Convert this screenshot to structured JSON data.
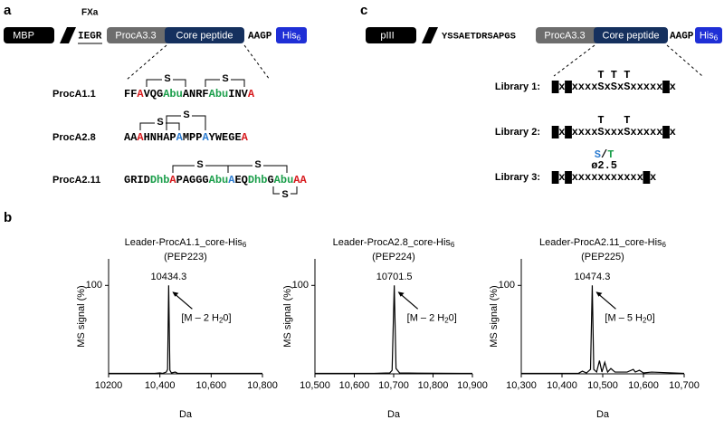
{
  "panel_a": {
    "label": "a",
    "construct": {
      "mbp": "MBP",
      "fxa": "FXa",
      "site": "IEGR",
      "leader": "ProcA3.3",
      "core": "Core peptide",
      "linker": "AAGP",
      "tag": "His",
      "tag_sub": "6"
    },
    "bridge_label": "S",
    "peptides": [
      {
        "name": "ProcA1.1",
        "sequence": [
          {
            "text": "FF"
          },
          {
            "text": "A",
            "color": "#d7191c"
          },
          {
            "text": "VQG"
          },
          {
            "text": "Abu",
            "color": "#1a9e4a"
          },
          {
            "text": "ANRF"
          },
          {
            "text": "Abu",
            "color": "#1a9e4a"
          },
          {
            "text": "INV"
          },
          {
            "text": "A",
            "color": "#d7191c"
          }
        ]
      },
      {
        "name": "ProcA2.8",
        "sequence": [
          {
            "text": "AA"
          },
          {
            "text": "A",
            "color": "#d7191c"
          },
          {
            "text": "HNHAP"
          },
          {
            "text": "A",
            "color": "#2b7bd0"
          },
          {
            "text": "MPP"
          },
          {
            "text": "A",
            "color": "#2b7bd0"
          },
          {
            "text": "YWEGE"
          },
          {
            "text": "A",
            "color": "#d7191c"
          }
        ]
      },
      {
        "name": "ProcA2.11",
        "sequence": [
          {
            "text": "GRID"
          },
          {
            "text": "Dhb",
            "color": "#1a9e4a"
          },
          {
            "text": "A",
            "color": "#d7191c"
          },
          {
            "text": "PAGGG"
          },
          {
            "text": "Abu",
            "color": "#1a9e4a"
          },
          {
            "text": "A",
            "color": "#2b7bd0"
          },
          {
            "text": "EQ"
          },
          {
            "text": "Dhb",
            "color": "#1a9e4a"
          },
          {
            "text": "G"
          },
          {
            "text": "Abu",
            "color": "#1a9e4a"
          },
          {
            "text": "AA",
            "color": "#d7191c"
          }
        ]
      }
    ]
  },
  "panel_c": {
    "label": "c",
    "construct": {
      "p3": "pIII",
      "linker1": "YSSAETDRSAPGS",
      "leader": "ProcA3.3",
      "core": "Core peptide",
      "linker": "AAGP",
      "tag": "His",
      "tag_sub": "6"
    },
    "libraries": [
      {
        "name": "Library 1:",
        "sequence": [
          {
            "text": "A",
            "style": "box"
          },
          {
            "text": "x"
          },
          {
            "text": "C",
            "style": "box"
          },
          {
            "text": "xxxx"
          },
          {
            "text": "S",
            "style": "blue",
            "above": "T"
          },
          {
            "text": "x"
          },
          {
            "text": "S",
            "style": "blue",
            "above": "T"
          },
          {
            "text": "x"
          },
          {
            "text": "S",
            "style": "blue",
            "above": "T"
          },
          {
            "text": "xxxxx"
          },
          {
            "text": "C",
            "style": "box"
          },
          {
            "text": "x"
          }
        ]
      },
      {
        "name": "Library 2:",
        "sequence": [
          {
            "text": "A",
            "style": "box"
          },
          {
            "text": "x"
          },
          {
            "text": "C",
            "style": "box"
          },
          {
            "text": "xxxx"
          },
          {
            "text": "S",
            "style": "blue",
            "above": "T"
          },
          {
            "text": "xxx"
          },
          {
            "text": "S",
            "style": "blue",
            "above": "T"
          },
          {
            "text": "xxxxx"
          },
          {
            "text": "C",
            "style": "box"
          },
          {
            "text": "x"
          }
        ]
      },
      {
        "name": "Library 3:",
        "sequence": [
          {
            "text": "A",
            "style": "box"
          },
          {
            "text": "x"
          },
          {
            "text": "C",
            "style": "box"
          },
          {
            "text": "xxx"
          },
          {
            "text": "xxxx",
            "style": "gray",
            "above_parts": [
              {
                "text": "S",
                "style": "blue"
              },
              {
                "text": "/"
              },
              {
                "text": "T",
                "style": "green"
              }
            ],
            "above2": "ø2.5"
          },
          {
            "text": "xxxx"
          },
          {
            "text": "C",
            "style": "box"
          },
          {
            "text": "x"
          }
        ]
      }
    ]
  },
  "panel_b": {
    "label": "b"
  },
  "chart_data": [
    {
      "type": "line",
      "title": "Leader-ProcA1.1_core-His",
      "title_sub": "6",
      "subtitle": "(PEP223)",
      "x": [
        10200,
        10380,
        10400,
        10410,
        10425,
        10430,
        10434.3,
        10439,
        10445,
        10460,
        10470,
        10800
      ],
      "values": [
        0.5,
        0.5,
        1,
        0.5,
        2,
        5,
        100,
        4,
        1,
        2,
        0.5,
        0.5
      ],
      "color": "#000000",
      "annotation": "[M – 2 H",
      "annotation_sub": "2",
      "annotation_end": "0]",
      "xlim": [
        10200,
        10800
      ],
      "xticks": [
        {
          "value": 10200,
          "label": "10200"
        },
        {
          "value": 10400,
          "label": "10,400"
        },
        {
          "value": 10600,
          "label": "10,600"
        },
        {
          "value": 10800,
          "label": "10,800"
        }
      ],
      "ylim": [
        0,
        130
      ],
      "yticks": [
        100
      ],
      "xlabel": "Da",
      "ylabel": "MS signal (%)"
    },
    {
      "type": "line",
      "title": "Leader-ProcA2.8_core-His",
      "title_sub": "6",
      "subtitle": "(PEP224)",
      "x": [
        10500,
        10650,
        10690,
        10696,
        10701.5,
        10706,
        10715,
        10760,
        10900
      ],
      "values": [
        0.5,
        0.5,
        1,
        4,
        100,
        6,
        1,
        0.8,
        0.5
      ],
      "color": "#000000",
      "annotation": "[M – 2 H",
      "annotation_sub": "2",
      "annotation_end": "0]",
      "xlim": [
        10500,
        10900
      ],
      "xticks": [
        {
          "value": 10500,
          "label": "10,500"
        },
        {
          "value": 10600,
          "label": "10,600"
        },
        {
          "value": 10700,
          "label": "10,700"
        },
        {
          "value": 10800,
          "label": "10,800"
        },
        {
          "value": 10900,
          "label": "10,900"
        }
      ],
      "ylim": [
        0,
        130
      ],
      "yticks": [
        100
      ],
      "xlabel": "Da",
      "ylabel": "MS signal (%)"
    },
    {
      "type": "line",
      "title": "Leader-ProcA2.11_core-His",
      "title_sub": "6",
      "subtitle": "(PEP225)",
      "x": [
        10300,
        10440,
        10450,
        10460,
        10470,
        10474.3,
        10478,
        10485,
        10492,
        10498,
        10505,
        10512,
        10520,
        10530,
        10560,
        10575,
        10580,
        10590,
        10600,
        10620,
        10700
      ],
      "values": [
        0.5,
        0.5,
        3,
        1,
        5,
        100,
        5,
        2,
        15,
        2,
        13,
        2,
        6,
        2,
        2,
        5,
        2,
        4,
        1,
        2,
        0.5
      ],
      "color": "#000000",
      "annotation": "[M – 5 H",
      "annotation_sub": "2",
      "annotation_end": "0]",
      "xlim": [
        10300,
        10700
      ],
      "xticks": [
        {
          "value": 10300,
          "label": "10,300"
        },
        {
          "value": 10400,
          "label": "10,400"
        },
        {
          "value": 10500,
          "label": "10,500"
        },
        {
          "value": 10600,
          "label": "10,600"
        },
        {
          "value": 10700,
          "label": "10,700"
        }
      ],
      "ylim": [
        0,
        130
      ],
      "yticks": [
        100
      ],
      "xlabel": "Da",
      "ylabel": "MS signal (%)"
    }
  ]
}
